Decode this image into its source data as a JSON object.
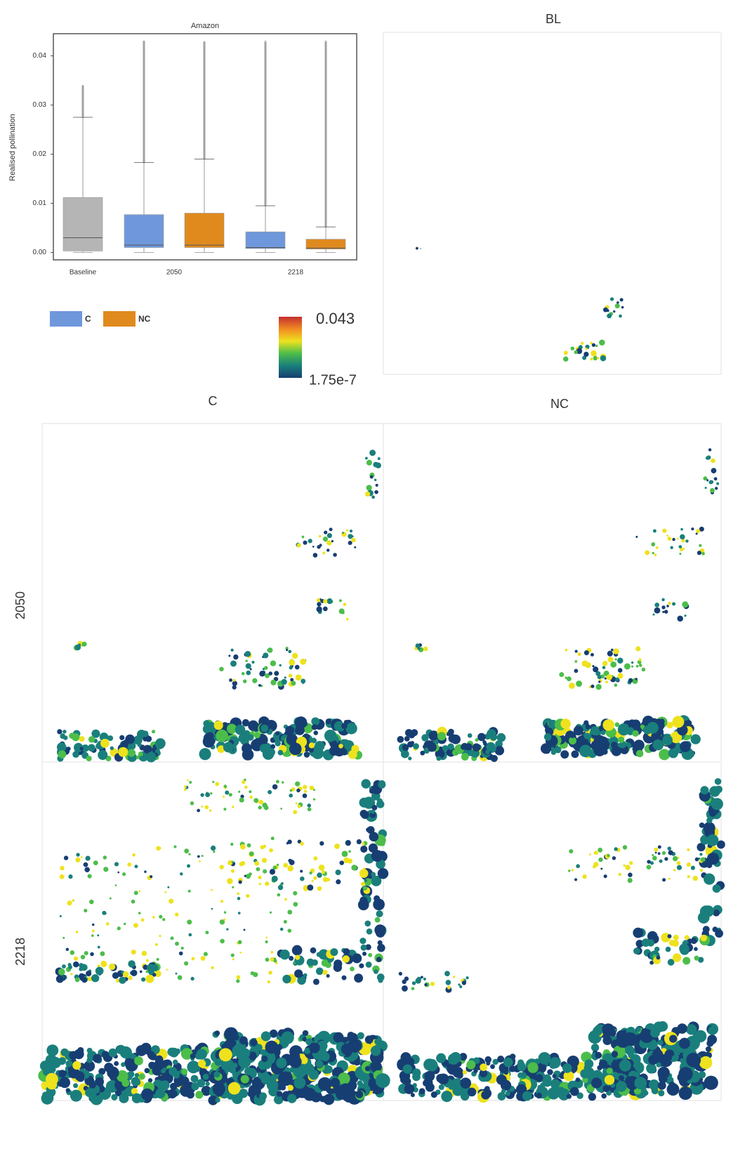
{
  "chart_data": {
    "type": "box",
    "title": "Amazon",
    "ylabel": "Realised pollination",
    "categories": [
      "Baseline",
      "2050",
      "2218"
    ],
    "baseline": {
      "color": "#b5b5b5",
      "stats": {
        "whislo": 0,
        "q1": 0.0003,
        "med": 0.003,
        "q3": 0.0112,
        "whishi": 0.0275,
        "flier_max": 0.034
      }
    },
    "series": [
      {
        "name": "C",
        "color": "#6f98dc",
        "boxes": [
          null,
          {
            "whislo": 0,
            "q1": 0.001,
            "med": 0.0015,
            "q3": 0.0077,
            "whishi": 0.0183,
            "flier_max": 0.043
          },
          {
            "whislo": 0,
            "q1": 0.0008,
            "med": 0.001,
            "q3": 0.0042,
            "whishi": 0.0095,
            "flier_max": 0.043
          }
        ]
      },
      {
        "name": "NC",
        "color": "#e08a1e",
        "boxes": [
          null,
          {
            "whislo": 0,
            "q1": 0.001,
            "med": 0.0015,
            "q3": 0.008,
            "whishi": 0.019,
            "flier_max": 0.043
          },
          {
            "whislo": 0,
            "q1": 0.0007,
            "med": 0.0009,
            "q3": 0.0027,
            "whishi": 0.0052,
            "flier_max": 0.043
          }
        ]
      }
    ],
    "ylim": [
      -0.0015,
      0.0445
    ],
    "yticks": [
      {
        "value": 0,
        "label": "0.00"
      },
      0.01,
      0.02,
      0.03,
      0.04
    ],
    "colorbar": {
      "ticks": [
        1.75e-07,
        0.043
      ],
      "colors": [
        "#173e72",
        "#1a7f7c",
        "#4cbd4a",
        "#eee21e",
        "#f08a22",
        "#c62f2f"
      ]
    }
  },
  "maps": {
    "bl_title": "BL",
    "columns": [
      "C",
      "NC"
    ],
    "rows": [
      "2050",
      "2218"
    ]
  }
}
